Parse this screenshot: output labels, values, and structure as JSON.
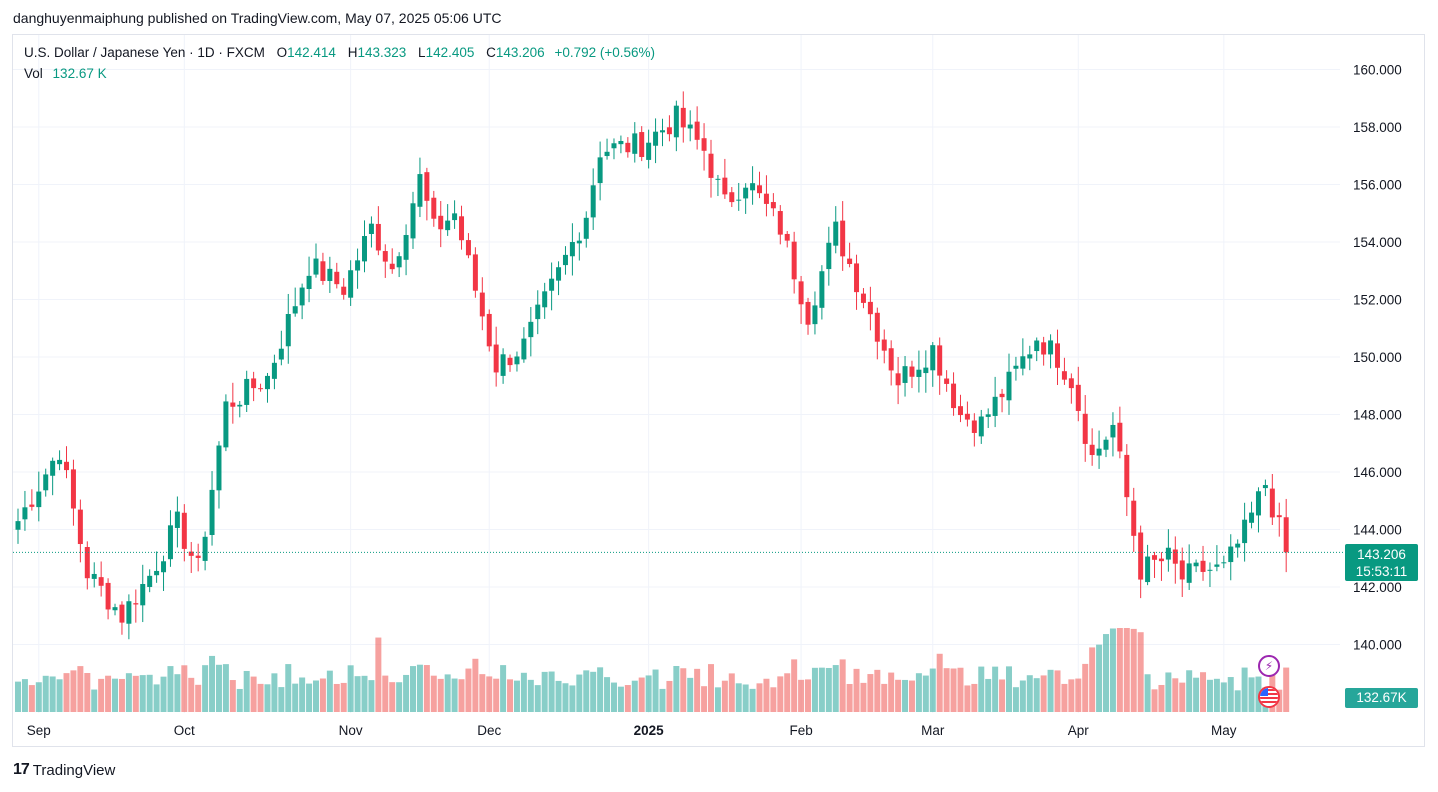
{
  "header": {
    "published_line": "danghuyenmaiphung published on TradingView.com, May 07, 2025 05:06 UTC"
  },
  "legend": {
    "symbol": "U.S. Dollar / Japanese Yen · 1D · FXCM",
    "open_label": "O",
    "open": "142.414",
    "high_label": "H",
    "high": "143.323",
    "low_label": "L",
    "low": "142.405",
    "close_label": "C",
    "close": "143.206",
    "change": "+0.792 (+0.56%)",
    "vol_label": "Vol",
    "vol_value": "132.67 K"
  },
  "price_tag": {
    "price": "143.206",
    "countdown": "15:53:11"
  },
  "volume_tag": "132.67K",
  "branding": {
    "logo_mark": "17",
    "logo_text": "TradingView"
  },
  "icons": [
    "lightning-icon",
    "us-flag-icon"
  ],
  "colors": {
    "up": "#089981",
    "down": "#f23645",
    "vol_up": "#26a69a",
    "vol_down": "#ef5350",
    "grid": "#f0f3fa"
  },
  "chart_data": {
    "type": "candlestick",
    "y_axis_ticks": [
      "160.000",
      "158.000",
      "156.000",
      "154.000",
      "152.000",
      "150.000",
      "148.000",
      "146.000",
      "144.000",
      "142.000",
      "140.000"
    ],
    "y_range": [
      139.0,
      161.0
    ],
    "x_axis_labels": [
      {
        "label": "Sep",
        "index": 3,
        "bold": false
      },
      {
        "label": "Oct",
        "index": 24,
        "bold": false
      },
      {
        "label": "Nov",
        "index": 48,
        "bold": false
      },
      {
        "label": "Dec",
        "index": 68,
        "bold": false
      },
      {
        "label": "2025",
        "index": 91,
        "bold": true
      },
      {
        "label": "Feb",
        "index": 113,
        "bold": false
      },
      {
        "label": "Mar",
        "index": 132,
        "bold": false
      },
      {
        "label": "Apr",
        "index": 153,
        "bold": false
      },
      {
        "label": "May",
        "index": 174,
        "bold": false
      }
    ],
    "last_price": 143.206,
    "monthly_path": [
      {
        "i": 0,
        "p": 144.3
      },
      {
        "i": 6,
        "p": 146.8
      },
      {
        "i": 10,
        "p": 142.5
      },
      {
        "i": 15,
        "p": 141.0
      },
      {
        "i": 19,
        "p": 142.4
      },
      {
        "i": 23,
        "p": 144.2
      },
      {
        "i": 26,
        "p": 142.6
      },
      {
        "i": 30,
        "p": 148.3
      },
      {
        "i": 36,
        "p": 149.3
      },
      {
        "i": 42,
        "p": 153.2
      },
      {
        "i": 47,
        "p": 152.4
      },
      {
        "i": 51,
        "p": 154.5
      },
      {
        "i": 54,
        "p": 153.1
      },
      {
        "i": 58,
        "p": 156.2
      },
      {
        "i": 60,
        "p": 154.4
      },
      {
        "i": 63,
        "p": 155.0
      },
      {
        "i": 69,
        "p": 149.7
      },
      {
        "i": 73,
        "p": 150.4
      },
      {
        "i": 78,
        "p": 152.9
      },
      {
        "i": 82,
        "p": 155.0
      },
      {
        "i": 84,
        "p": 157.2
      },
      {
        "i": 90,
        "p": 157.4
      },
      {
        "i": 95,
        "p": 158.3
      },
      {
        "i": 99,
        "p": 157.2
      },
      {
        "i": 102,
        "p": 155.3
      },
      {
        "i": 105,
        "p": 156.2
      },
      {
        "i": 110,
        "p": 154.5
      },
      {
        "i": 114,
        "p": 151.5
      },
      {
        "i": 118,
        "p": 154.4
      },
      {
        "i": 123,
        "p": 151.5
      },
      {
        "i": 127,
        "p": 149.2
      },
      {
        "i": 132,
        "p": 150.3
      },
      {
        "i": 136,
        "p": 148.0
      },
      {
        "i": 139,
        "p": 147.7
      },
      {
        "i": 143,
        "p": 149.1
      },
      {
        "i": 147,
        "p": 150.7
      },
      {
        "i": 150,
        "p": 150.0
      },
      {
        "i": 152,
        "p": 149.2
      },
      {
        "i": 155,
        "p": 146.5
      },
      {
        "i": 158,
        "p": 147.6
      },
      {
        "i": 162,
        "p": 142.6
      },
      {
        "i": 166,
        "p": 143.0
      },
      {
        "i": 168,
        "p": 142.3
      },
      {
        "i": 171,
        "p": 142.6
      },
      {
        "i": 174,
        "p": 142.6
      },
      {
        "i": 177,
        "p": 143.9
      },
      {
        "i": 180,
        "p": 145.6
      },
      {
        "i": 183,
        "p": 143.206
      }
    ],
    "volume_range": [
      0,
      3.0
    ]
  }
}
